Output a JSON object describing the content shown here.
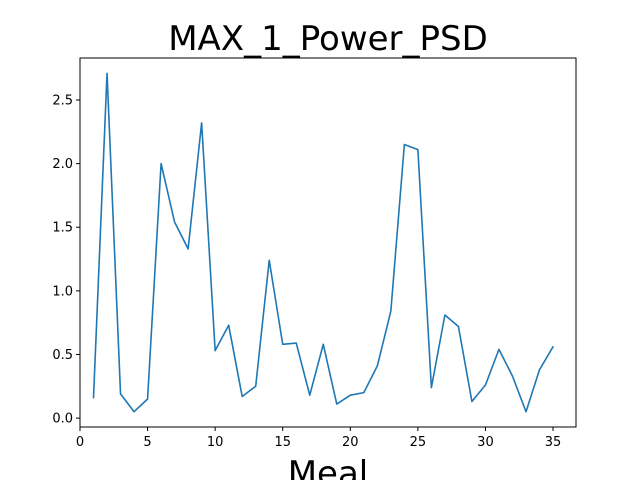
{
  "chart_data": {
    "type": "line",
    "title": "MAX_1_Power_PSD",
    "xlabel": "Meal",
    "ylabel": "",
    "xlim": [
      0,
      36.7
    ],
    "ylim": [
      -0.07,
      2.83
    ],
    "xticks": [
      0,
      5,
      10,
      15,
      20,
      25,
      30,
      35
    ],
    "xtick_labels": [
      "0",
      "5",
      "10",
      "15",
      "20",
      "25",
      "30",
      "35"
    ],
    "yticks": [
      0.0,
      0.5,
      1.0,
      1.5,
      2.0,
      2.5
    ],
    "ytick_labels": [
      "0.0",
      "0.5",
      "1.0",
      "1.5",
      "2.0",
      "2.5"
    ],
    "grid": false,
    "line_color": "#1f77b4",
    "series": [
      {
        "x": [
          1,
          2,
          3,
          4,
          5,
          6,
          7,
          8,
          9,
          10,
          11,
          12,
          13,
          14,
          15,
          16,
          17,
          18,
          19,
          20,
          21,
          22,
          23,
          24,
          25,
          26,
          27,
          28,
          29,
          30,
          31,
          32,
          33,
          34,
          35
        ],
        "values": [
          0.16,
          2.71,
          0.19,
          0.05,
          0.15,
          2.0,
          1.54,
          1.33,
          2.32,
          0.53,
          0.73,
          0.17,
          0.25,
          1.24,
          0.58,
          0.59,
          0.18,
          0.58,
          0.11,
          0.18,
          0.2,
          0.41,
          0.84,
          2.15,
          2.11,
          0.24,
          0.81,
          0.72,
          0.13,
          0.26,
          0.54,
          0.33,
          0.05,
          0.38,
          0.56
        ]
      }
    ]
  }
}
